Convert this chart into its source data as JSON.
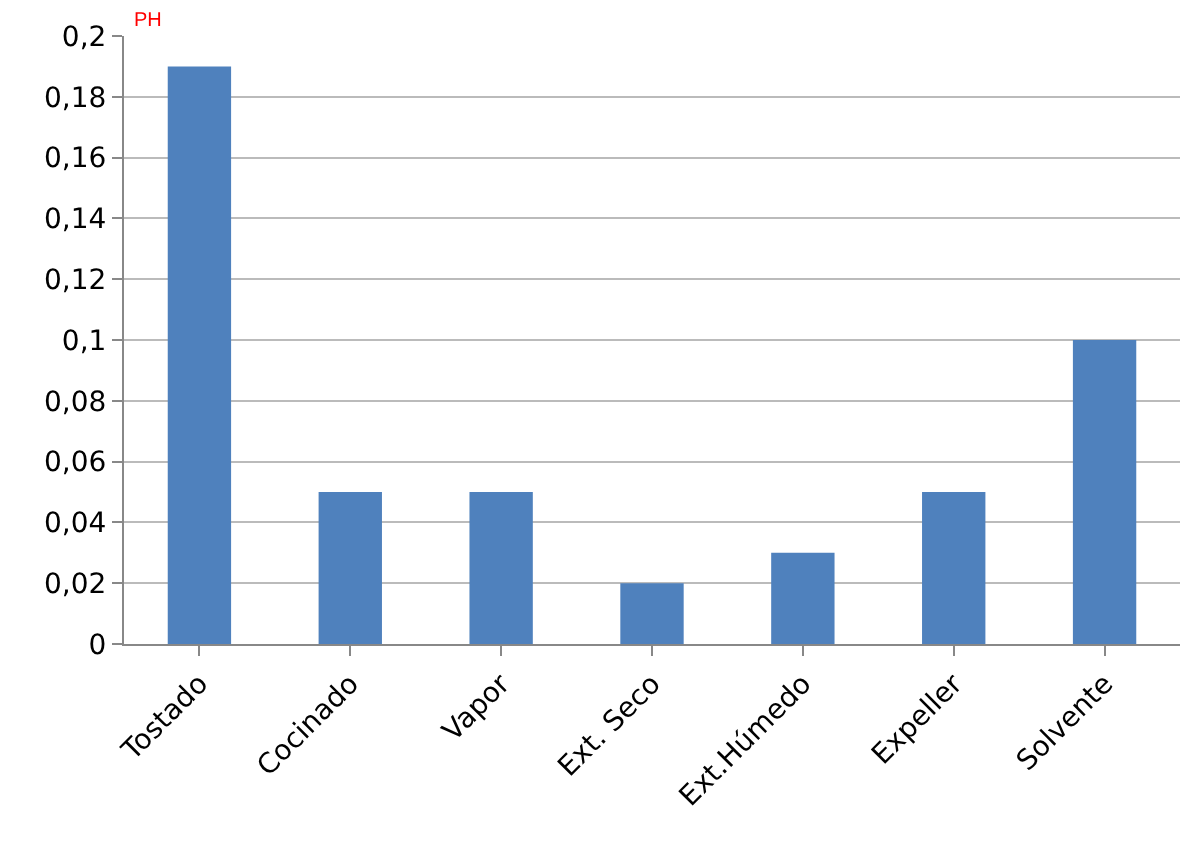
{
  "chart_data": {
    "type": "bar",
    "ylabel": "PH",
    "categories": [
      "Tostado",
      "Cocinado",
      "Vapor",
      "Ext. Seco",
      "Ext.Húmedo",
      "Expeller",
      "Solvente"
    ],
    "values": [
      0.19,
      0.05,
      0.05,
      0.02,
      0.03,
      0.05,
      0.1
    ],
    "color": "#4f81bd",
    "ylim": [
      0,
      0.2
    ],
    "yticks": [
      {
        "value": 0,
        "label": "0"
      },
      {
        "value": 0.02,
        "label": "0,02"
      },
      {
        "value": 0.04,
        "label": "0,04"
      },
      {
        "value": 0.06,
        "label": "0,06"
      },
      {
        "value": 0.08,
        "label": "0,08"
      },
      {
        "value": 0.1,
        "label": "0,1"
      },
      {
        "value": 0.12,
        "label": "0,12"
      },
      {
        "value": 0.14,
        "label": "0,14"
      },
      {
        "value": 0.16,
        "label": "0,16"
      },
      {
        "value": 0.18,
        "label": "0,18"
      },
      {
        "value": 0.2,
        "label": "0,2"
      }
    ],
    "grid": "y"
  }
}
